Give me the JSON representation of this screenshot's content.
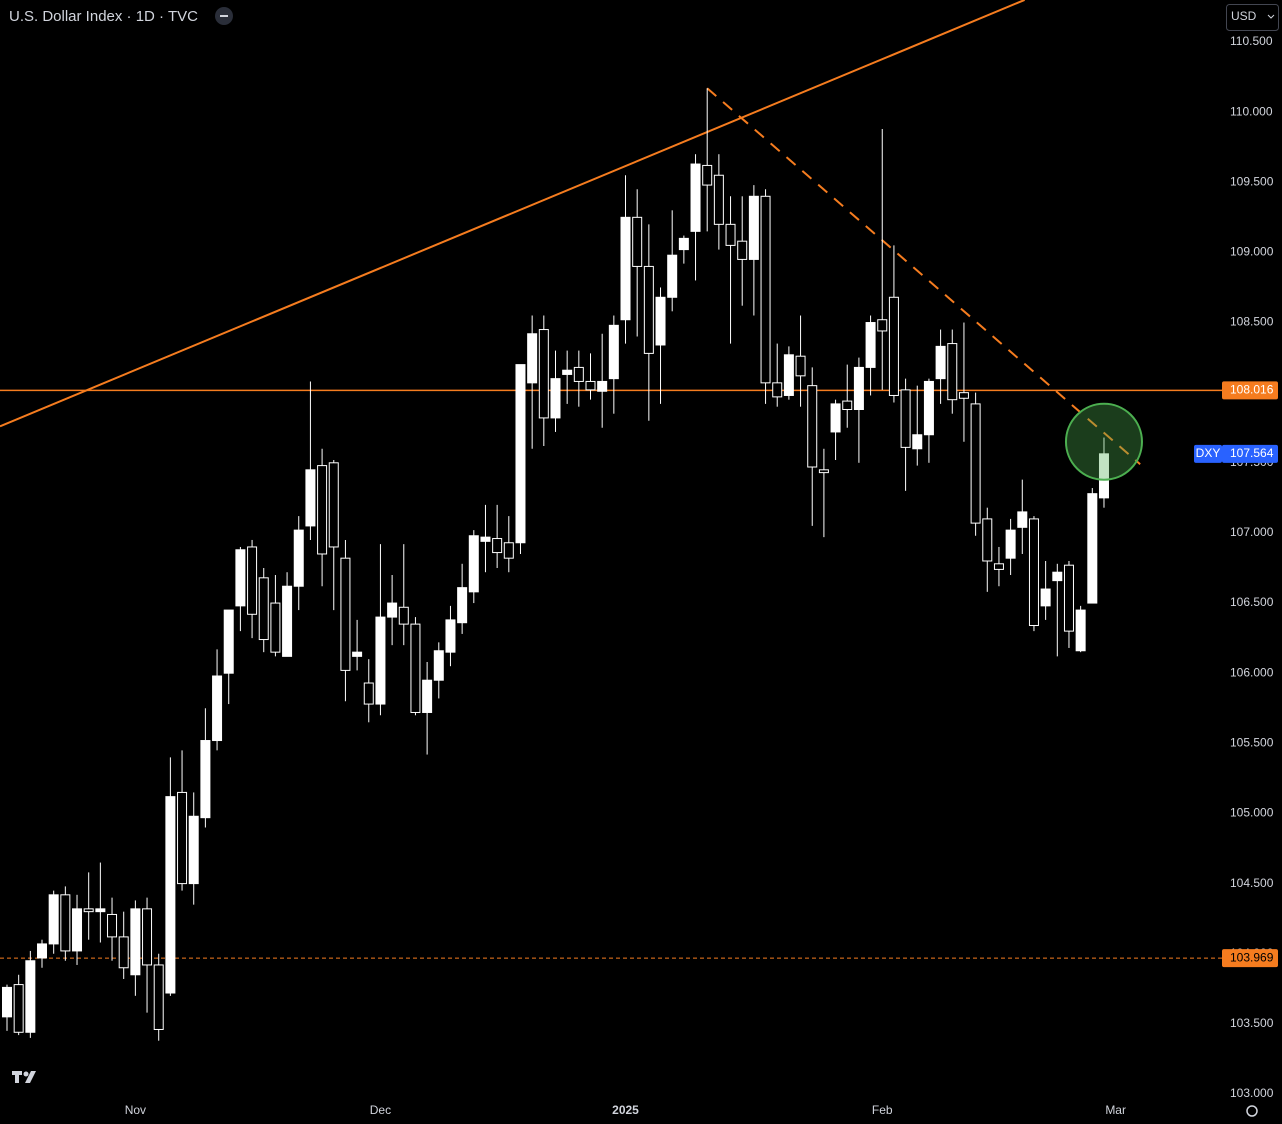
{
  "chart_data": {
    "type": "candlestick",
    "title": "U.S. Dollar Index · 1D · TVC",
    "currency": "USD",
    "symbol": "DXY",
    "open": [
      103.55,
      103.78,
      103.44,
      103.97,
      104.07,
      104.42,
      104.02,
      104.32,
      104.3,
      104.28,
      104.12,
      103.85,
      104.32,
      103.92,
      103.72,
      105.15,
      104.5,
      104.97,
      105.52,
      106.0,
      106.48,
      106.9,
      106.68,
      106.5,
      106.12,
      106.62,
      107.05,
      107.48,
      107.5,
      106.82,
      106.12,
      105.93,
      105.78,
      106.4,
      106.47,
      106.35,
      105.72,
      105.95,
      106.15,
      106.36,
      106.58,
      106.94,
      106.96,
      106.93,
      106.93,
      108.07,
      108.45,
      107.82,
      108.13,
      108.18,
      108.08,
      108.01,
      108.1,
      108.52,
      109.25,
      108.9,
      108.34,
      108.68,
      109.02,
      109.15,
      109.62,
      109.55,
      109.2,
      109.08,
      108.95,
      109.4,
      108.07,
      107.98,
      108.26,
      108.05,
      107.45,
      107.72,
      107.94,
      107.88,
      108.18,
      108.52,
      108.68,
      108.02,
      107.6,
      107.7,
      108.1,
      108.35,
      108.0,
      107.92,
      107.1,
      106.78,
      106.82,
      107.04,
      107.1,
      106.48,
      106.66,
      106.77,
      106.16,
      106.5,
      107.25
    ],
    "high": [
      103.78,
      103.85,
      104.02,
      104.1,
      104.45,
      104.48,
      104.42,
      104.58,
      104.65,
      104.4,
      104.3,
      104.38,
      104.4,
      104.0,
      105.4,
      105.45,
      105.15,
      105.75,
      106.17,
      106.45,
      106.9,
      106.95,
      106.75,
      106.7,
      106.72,
      107.12,
      108.08,
      107.6,
      107.52,
      106.95,
      106.38,
      106.1,
      106.92,
      106.7,
      106.92,
      106.4,
      106.08,
      106.22,
      106.48,
      106.78,
      107.02,
      107.2,
      107.2,
      107.12,
      108.2,
      108.55,
      108.55,
      108.3,
      108.3,
      108.3,
      108.28,
      108.42,
      108.55,
      109.55,
      109.45,
      109.2,
      108.75,
      109.3,
      109.12,
      109.7,
      110.17,
      109.7,
      109.4,
      109.4,
      109.48,
      109.45,
      108.35,
      108.33,
      108.55,
      108.18,
      107.6,
      107.95,
      108.2,
      108.25,
      108.55,
      109.88,
      109.05,
      108.1,
      108.05,
      108.1,
      108.45,
      108.45,
      108.5,
      108.0,
      107.18,
      106.9,
      107.1,
      107.38,
      107.12,
      106.8,
      106.78,
      106.8,
      106.48,
      107.32,
      107.68
    ],
    "low": [
      103.45,
      103.42,
      103.4,
      103.9,
      104.0,
      103.95,
      103.92,
      104.1,
      104.08,
      103.95,
      103.82,
      103.7,
      103.58,
      103.38,
      103.7,
      104.45,
      104.35,
      104.9,
      105.45,
      105.78,
      106.3,
      106.25,
      106.15,
      106.12,
      106.12,
      106.45,
      106.95,
      106.62,
      106.45,
      105.8,
      106.02,
      105.65,
      105.7,
      106.2,
      106.2,
      105.7,
      105.42,
      105.82,
      106.05,
      106.28,
      106.5,
      106.72,
      106.75,
      106.72,
      106.85,
      107.6,
      107.62,
      107.72,
      107.92,
      107.9,
      107.95,
      107.75,
      107.85,
      108.35,
      108.4,
      107.8,
      107.92,
      108.58,
      108.92,
      108.8,
      109.15,
      109.02,
      108.35,
      108.62,
      108.55,
      107.92,
      107.9,
      107.95,
      107.9,
      107.05,
      106.97,
      107.52,
      107.75,
      107.5,
      107.98,
      108.02,
      107.93,
      107.3,
      107.48,
      107.5,
      107.92,
      107.85,
      107.65,
      106.98,
      106.58,
      106.62,
      106.7,
      106.85,
      106.3,
      106.38,
      106.12,
      106.18,
      106.15,
      106.5,
      107.18
    ],
    "close": [
      103.76,
      103.44,
      103.95,
      104.07,
      104.42,
      104.02,
      104.32,
      104.3,
      104.32,
      104.12,
      103.9,
      104.32,
      103.92,
      103.46,
      105.12,
      104.5,
      104.98,
      105.52,
      105.98,
      106.45,
      106.88,
      106.42,
      106.24,
      106.15,
      106.62,
      107.02,
      107.45,
      106.85,
      106.9,
      106.02,
      106.15,
      105.78,
      106.4,
      106.5,
      106.35,
      105.72,
      105.95,
      106.16,
      106.38,
      106.61,
      106.98,
      106.97,
      106.86,
      106.82,
      108.2,
      108.42,
      107.82,
      108.1,
      108.16,
      108.08,
      108.02,
      108.08,
      108.48,
      109.25,
      108.9,
      108.28,
      108.68,
      108.98,
      109.1,
      109.63,
      109.48,
      109.2,
      109.05,
      108.95,
      109.4,
      108.07,
      107.97,
      108.27,
      108.12,
      107.47,
      107.43,
      107.92,
      107.88,
      108.18,
      108.5,
      108.44,
      107.98,
      107.61,
      107.7,
      108.08,
      108.33,
      107.95,
      107.96,
      107.07,
      106.8,
      106.74,
      107.02,
      107.15,
      106.34,
      106.6,
      106.72,
      106.3,
      106.45,
      107.28,
      107.564
    ],
    "up_color": "#ffffff",
    "down_color": "#000000",
    "wick_color": "#ffffff",
    "ylim": [
      103,
      110.5
    ],
    "yticks": [
      {
        "value": 103,
        "label": "103.000"
      },
      {
        "value": 103.5,
        "label": "103.500"
      },
      {
        "value": 104,
        "label": "104.000"
      },
      {
        "value": 104.5,
        "label": "104.500"
      },
      {
        "value": 105,
        "label": "105.000"
      },
      {
        "value": 105.5,
        "label": "105.500"
      },
      {
        "value": 106,
        "label": "106.000"
      },
      {
        "value": 106.5,
        "label": "106.500"
      },
      {
        "value": 107,
        "label": "107.000"
      },
      {
        "value": 107.5,
        "label": "107.500"
      },
      {
        "value": 108,
        "label": "108.000"
      },
      {
        "value": 108.5,
        "label": "108.500"
      },
      {
        "value": 109,
        "label": "109.000"
      },
      {
        "value": 109.5,
        "label": "109.500"
      },
      {
        "value": 110,
        "label": "110.000"
      },
      {
        "value": 110.5,
        "label": "110.500"
      }
    ],
    "xticks": [
      {
        "value": 11,
        "label": "Nov"
      },
      {
        "value": 32,
        "label": "Dec"
      },
      {
        "value": 53,
        "label": "2025"
      },
      {
        "value": 75,
        "label": "Feb"
      },
      {
        "value": 95,
        "label": "Mar"
      }
    ],
    "last_price": 107.564,
    "last_color": "#2962ff",
    "hlines": [
      {
        "value": 108.016,
        "color": "#f57c1f",
        "dashed": false
      },
      {
        "value": 103.969,
        "color": "#f57c1f",
        "dashed": true
      }
    ],
    "trendlines": [
      {
        "color": "#f57c1f",
        "dashed": false,
        "points": [
          [
            -0.6,
            107.76
          ],
          [
            87.2,
            110.8
          ]
        ]
      },
      {
        "color": "#f57c1f",
        "dashed": true,
        "points": [
          [
            60,
            110.17
          ],
          [
            97.1,
            107.49
          ]
        ]
      }
    ],
    "circle": {
      "index": 94,
      "price": 107.65,
      "color": "#4caf50"
    }
  }
}
